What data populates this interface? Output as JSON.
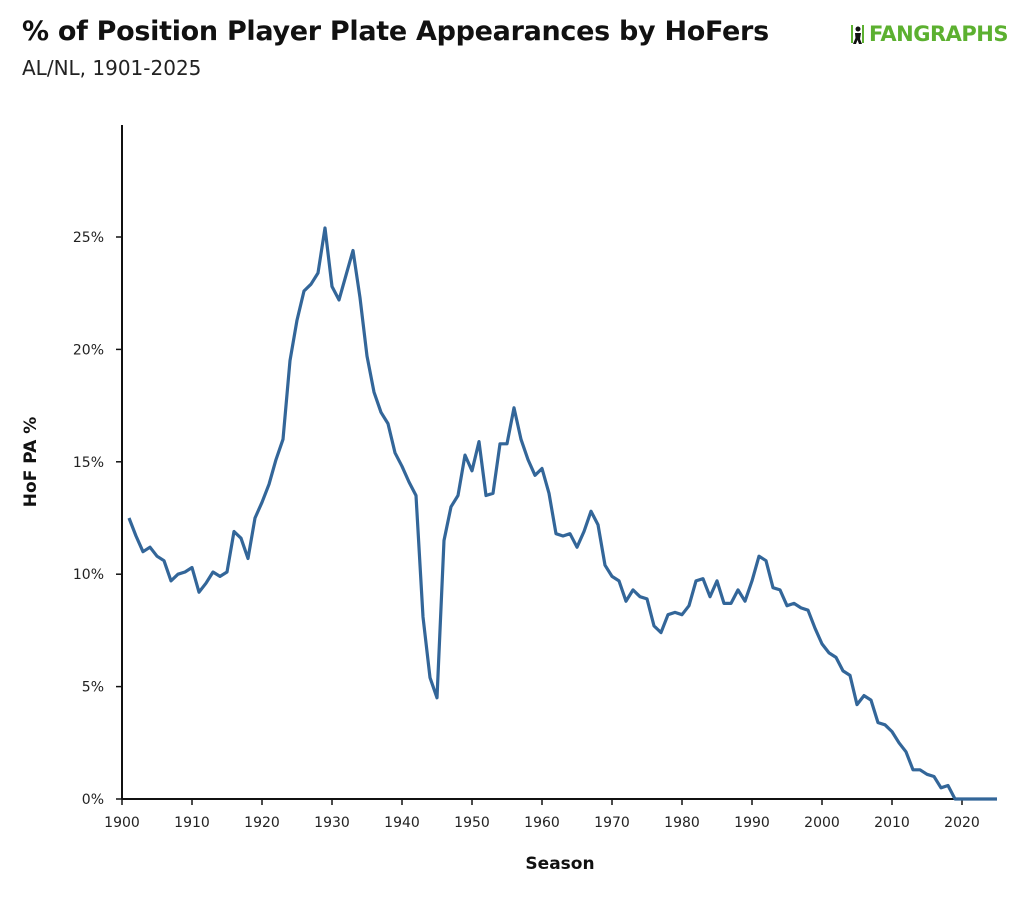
{
  "header": {
    "title": "% of Position Player Plate Appearances by HoFers",
    "subtitle": "AL/NL, 1901-2025",
    "logo_text": "FANGRAPHS"
  },
  "chart_data": {
    "type": "line",
    "title": "% of Position Player Plate Appearances by HoFers",
    "subtitle": "AL/NL, 1901-2025",
    "xlabel": "Season",
    "ylabel": "HoF PA %",
    "xlim": [
      1900,
      2025
    ],
    "ylim": [
      0,
      30
    ],
    "x_ticks": [
      "1900",
      "1910",
      "1920",
      "1930",
      "1940",
      "1950",
      "1960",
      "1970",
      "1980",
      "1990",
      "2000",
      "2010",
      "2020"
    ],
    "y_ticks": [
      "0%",
      "5%",
      "10%",
      "15%",
      "20%",
      "25%"
    ],
    "grid": false,
    "line_color": "#336699",
    "x_start": 1901,
    "values": [
      12.5,
      11.7,
      11.0,
      11.2,
      10.8,
      10.6,
      9.7,
      10.0,
      10.1,
      10.3,
      9.2,
      9.6,
      10.1,
      9.9,
      10.1,
      11.9,
      11.6,
      10.7,
      12.5,
      13.2,
      14.0,
      15.1,
      16.0,
      19.5,
      21.3,
      22.6,
      22.9,
      23.4,
      25.4,
      22.8,
      22.2,
      23.3,
      24.4,
      22.3,
      19.7,
      18.1,
      17.2,
      16.7,
      15.4,
      14.8,
      14.1,
      13.5,
      8.1,
      5.4,
      4.5,
      11.5,
      13.0,
      13.5,
      15.3,
      14.6,
      15.9,
      13.5,
      13.6,
      15.8,
      15.8,
      17.4,
      16.0,
      15.1,
      14.4,
      14.7,
      13.6,
      11.8,
      11.7,
      11.8,
      11.2,
      11.9,
      12.8,
      12.2,
      10.4,
      9.9,
      9.7,
      8.8,
      9.3,
      9.0,
      8.9,
      7.7,
      7.4,
      8.2,
      8.3,
      8.2,
      8.6,
      9.7,
      9.8,
      9.0,
      9.7,
      8.7,
      8.7,
      9.3,
      8.8,
      9.7,
      10.8,
      10.6,
      9.4,
      9.3,
      8.6,
      8.7,
      8.5,
      8.4,
      7.6,
      6.9,
      6.5,
      6.3,
      5.7,
      5.5,
      4.2,
      4.6,
      4.4,
      3.4,
      3.3,
      3.0,
      2.5,
      2.1,
      1.3,
      1.3,
      1.1,
      1.0,
      0.5,
      0.6,
      0.0,
      0.0,
      0.0,
      0.0,
      0.0,
      0.0,
      0.0
    ]
  }
}
